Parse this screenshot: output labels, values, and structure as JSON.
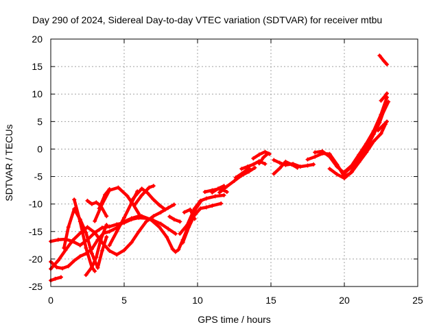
{
  "chart_data": {
    "type": "scatter",
    "title": "Day 290 of 2024, Sidereal Day-to-day VTEC variation (SDTVAR) for receiver mtbu",
    "xlabel": "GPS time / hours",
    "ylabel": "SDTVAR / TECUs",
    "xlim": [
      0,
      25
    ],
    "ylim": [
      -25,
      20
    ],
    "xticks": [
      0,
      5,
      10,
      15,
      20,
      25
    ],
    "yticks": [
      -25,
      -20,
      -15,
      -10,
      -5,
      0,
      5,
      10,
      15,
      20
    ],
    "grid": true,
    "color": "#ff0000",
    "series": [
      {
        "x": [
          0.0,
          0.5,
          1.0,
          1.5,
          2.0,
          2.5,
          3.0,
          3.5,
          4.0,
          4.5,
          5.0,
          5.5,
          6.0,
          6.5,
          7.0,
          7.5,
          8.0,
          8.5
        ],
        "y": [
          -16.8,
          -16.5,
          -16.4,
          -16.8,
          -17.5,
          -16.5,
          -15.2,
          -14.3,
          -14.1,
          -13.7,
          -13.4,
          -12.8,
          -12.5,
          -12.6,
          -13.0,
          -13.6,
          -14.5,
          -15.4
        ]
      },
      {
        "x": [
          0.0,
          0.4,
          0.8,
          1.2,
          1.6,
          2.0,
          2.4,
          2.8,
          3.2,
          3.6,
          4.0,
          4.5,
          5.0,
          5.5,
          6.0
        ],
        "y": [
          -20.5,
          -21.5,
          -21.7,
          -21.3,
          -20.3,
          -19.5,
          -19.0,
          -18.2,
          -16.5,
          -15.3,
          -15.0,
          -14.3,
          -13.2,
          -12.6,
          -12.2
        ]
      },
      {
        "x": [
          0.0,
          0.5,
          1.0,
          1.5,
          2.0,
          2.5,
          3.0,
          3.5,
          4.0,
          4.5,
          5.0,
          5.5,
          6.0,
          6.5,
          7.0,
          7.5,
          8.0,
          8.4
        ],
        "y": [
          -21.8,
          -20.3,
          -18.4,
          -16.6,
          -15.3,
          -14.2,
          -15.2,
          -17.0,
          -18.5,
          -19.2,
          -18.4,
          -17.0,
          -15.0,
          -13.2,
          -12.2,
          -11.5,
          -10.7,
          -10.1
        ]
      },
      {
        "x": [
          0.0,
          0.3,
          0.7
        ],
        "y": [
          -23.9,
          -23.6,
          -23.3
        ]
      },
      {
        "x": [
          0.9,
          1.2,
          1.6,
          2.0,
          2.4,
          2.8,
          3.2,
          3.5,
          3.8
        ],
        "y": [
          -18.0,
          -14.2,
          -10.9,
          -12.8,
          -15.2,
          -19.0,
          -21.6,
          -18.5,
          -16.0
        ]
      },
      {
        "x": [
          1.6,
          2.0,
          2.4,
          2.8,
          3.0
        ],
        "y": [
          -9.2,
          -13.2,
          -18.0,
          -21.5,
          -22.2
        ]
      },
      {
        "x": [
          2.4,
          2.8,
          3.1,
          3.4,
          3.8
        ],
        "y": [
          -22.9,
          -21.5,
          -19.7,
          -16.5,
          -13.8
        ]
      },
      {
        "x": [
          2.5,
          2.8,
          3.1,
          3.4,
          3.8
        ],
        "y": [
          -9.4,
          -10.0,
          -9.7,
          -10.3,
          -12.2
        ]
      },
      {
        "x": [
          3.0,
          3.5,
          4.0,
          4.6,
          5.2,
          5.6,
          6.1
        ],
        "y": [
          -13.1,
          -10.0,
          -7.5,
          -7.0,
          -8.5,
          -10.0,
          -12.2
        ]
      },
      {
        "x": [
          3.3,
          3.7,
          4.0
        ],
        "y": [
          -10.8,
          -8.3,
          -7.3
        ]
      },
      {
        "x": [
          4.0,
          4.5,
          5.0,
          5.5,
          5.9
        ],
        "y": [
          -17.5,
          -15.0,
          -12.5,
          -9.8,
          -7.7
        ]
      },
      {
        "x": [
          5.5,
          5.8,
          6.2,
          6.6,
          7.0,
          7.4,
          7.8
        ],
        "y": [
          -9.4,
          -8.4,
          -7.2,
          -8.0,
          -9.2,
          -10.2,
          -11.0
        ]
      },
      {
        "x": [
          5.7,
          6.2,
          6.7,
          7.0
        ],
        "y": [
          -10.2,
          -8.4,
          -7.0,
          -6.7
        ]
      },
      {
        "x": [
          6.2,
          6.8,
          7.4,
          7.9,
          8.3,
          8.5,
          8.7,
          9.0,
          9.4,
          9.8,
          10.2
        ],
        "y": [
          -12.2,
          -12.8,
          -14.2,
          -16.0,
          -18.2,
          -18.7,
          -18.3,
          -16.5,
          -13.8,
          -11.2,
          -9.6
        ]
      },
      {
        "x": [
          8.1,
          8.4,
          8.8
        ],
        "y": [
          -12.3,
          -12.8,
          -13.2
        ]
      },
      {
        "x": [
          8.8,
          9.3,
          9.8,
          10.2,
          10.6,
          11.2,
          11.8
        ],
        "y": [
          -15.4,
          -13.8,
          -10.8,
          -9.4,
          -9.0,
          -8.6,
          -8.4
        ]
      },
      {
        "x": [
          9.0,
          9.4,
          9.8,
          10.2,
          10.6,
          11.0,
          11.6
        ],
        "y": [
          -17.0,
          -14.2,
          -12.0,
          -10.8,
          -10.6,
          -10.3,
          -9.9
        ]
      },
      {
        "x": [
          9.1,
          9.5,
          9.8
        ],
        "y": [
          -11.5,
          -11.0,
          -12.7
        ]
      },
      {
        "x": [
          10.5,
          11.0,
          11.5,
          12.0
        ],
        "y": [
          -7.8,
          -7.5,
          -7.2,
          -7.8
        ]
      },
      {
        "x": [
          11.0,
          11.4,
          11.8
        ],
        "y": [
          -7.9,
          -7.2,
          -6.7
        ]
      },
      {
        "x": [
          11.5,
          12.0,
          12.5,
          13.0,
          13.5,
          13.9
        ],
        "y": [
          -7.9,
          -6.8,
          -5.8,
          -4.8,
          -4.1,
          -3.4
        ]
      },
      {
        "x": [
          12.6,
          13.0,
          13.5
        ],
        "y": [
          -5.2,
          -4.5,
          -3.5
        ]
      },
      {
        "x": [
          13.0,
          13.4,
          13.8,
          14.2,
          14.6
        ],
        "y": [
          -3.6,
          -3.2,
          -2.8,
          -2.2,
          -2.7
        ]
      },
      {
        "x": [
          13.8,
          14.2,
          14.6,
          14.9
        ],
        "y": [
          -1.7,
          -1.0,
          -0.5,
          -0.9
        ]
      },
      {
        "x": [
          14.2,
          14.5,
          14.8
        ],
        "y": [
          -2.6,
          -1.5,
          -0.8
        ]
      },
      {
        "x": [
          15.2,
          15.6,
          16.0,
          16.4,
          16.8
        ],
        "y": [
          -4.5,
          -3.5,
          -2.3,
          -2.8,
          -3.4
        ]
      },
      {
        "x": [
          15.2,
          15.6,
          16.0,
          16.5,
          17.0,
          17.5,
          17.9
        ],
        "y": [
          -2.0,
          -2.5,
          -2.9,
          -2.7,
          -3.2,
          -3.0,
          -2.8
        ]
      },
      {
        "x": [
          17.5,
          18.0,
          18.5,
          19.0,
          19.5,
          20.0,
          20.4,
          20.8,
          21.2,
          21.6,
          22.0,
          22.4,
          22.8
        ],
        "y": [
          -1.9,
          -1.4,
          -0.8,
          -0.9,
          -2.8,
          -5.0,
          -4.4,
          -2.8,
          -1.2,
          0.6,
          2.7,
          4.8,
          7.8
        ]
      },
      {
        "x": [
          18.0,
          18.5,
          19.0,
          19.5,
          20.0,
          20.5,
          21.0,
          21.5,
          22.0,
          22.5,
          23.0
        ],
        "y": [
          -0.6,
          -0.4,
          -1.4,
          -3.2,
          -4.4,
          -3.2,
          -1.6,
          0.6,
          3.2,
          5.8,
          8.6
        ]
      },
      {
        "x": [
          19.0,
          19.5,
          20.0,
          20.5,
          21.0,
          21.5,
          22.0,
          22.5,
          22.8
        ],
        "y": [
          -3.6,
          -4.6,
          -5.3,
          -4.2,
          -2.4,
          -0.6,
          1.4,
          2.8,
          4.5
        ]
      },
      {
        "x": [
          20.0,
          20.5,
          21.0,
          21.5,
          22.0,
          22.5,
          22.9
        ],
        "y": [
          -4.2,
          -3.0,
          -1.0,
          1.0,
          3.3,
          6.3,
          9.4
        ]
      },
      {
        "x": [
          22.3,
          22.6,
          22.9
        ],
        "y": [
          3.4,
          4.2,
          5.0
        ]
      },
      {
        "x": [
          22.5,
          22.7,
          22.9
        ],
        "y": [
          8.8,
          9.4,
          10.1
        ]
      },
      {
        "x": [
          22.4,
          22.7,
          22.9
        ],
        "y": [
          17.0,
          16.0,
          15.4
        ]
      }
    ]
  }
}
